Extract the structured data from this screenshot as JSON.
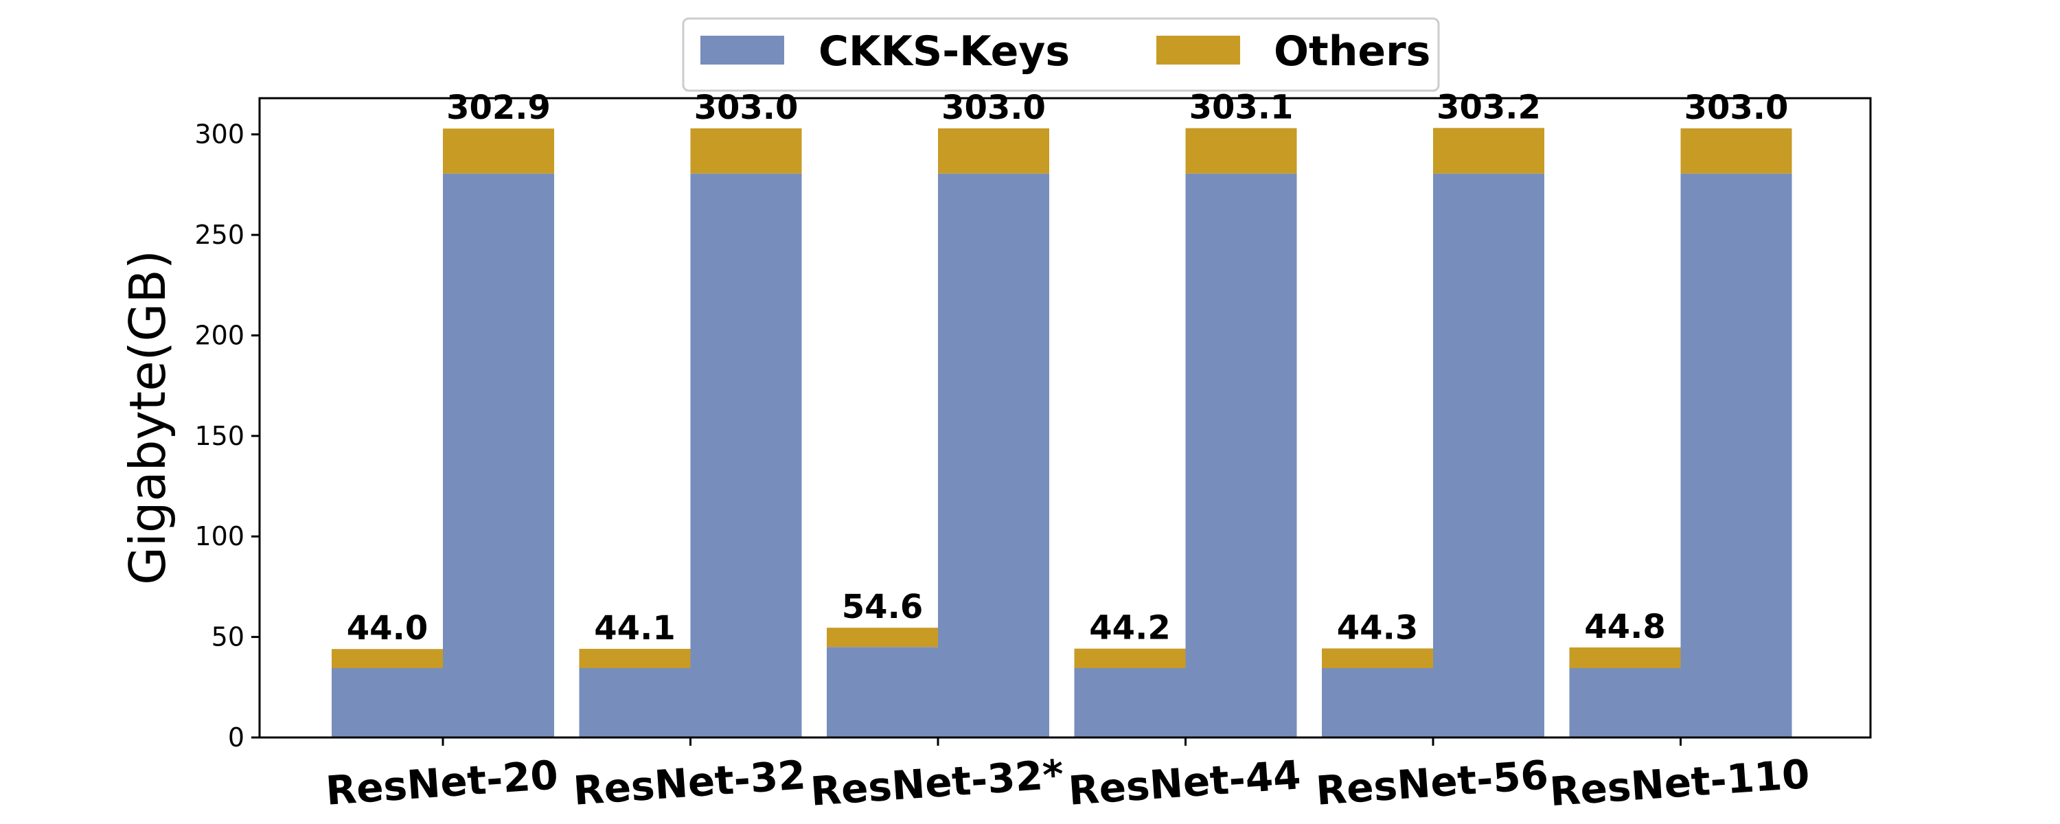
{
  "chart_data": {
    "type": "bar",
    "stacked": true,
    "title": "",
    "xlabel": "",
    "ylabel": "Gigabyte(GB)",
    "ylim": [
      0,
      318
    ],
    "yticks": [
      0,
      50,
      100,
      150,
      200,
      250,
      300
    ],
    "categories": [
      "ResNet-20",
      "ResNet-32",
      "ResNet-32*",
      "ResNet-44",
      "ResNet-56",
      "ResNet-110"
    ],
    "bars_per_category": 2,
    "series": [
      {
        "name": "CKKS-Keys",
        "color": "#778dbc",
        "values": [
          [
            34.5,
            280.5
          ],
          [
            34.5,
            280.5
          ],
          [
            45.0,
            280.5
          ],
          [
            34.5,
            280.5
          ],
          [
            34.5,
            280.5
          ],
          [
            34.5,
            280.5
          ]
        ]
      },
      {
        "name": "Others",
        "color": "#c89b25",
        "values": [
          [
            9.5,
            22.4
          ],
          [
            9.6,
            22.5
          ],
          [
            9.6,
            22.5
          ],
          [
            9.7,
            22.6
          ],
          [
            9.8,
            22.7
          ],
          [
            10.3,
            22.5
          ]
        ]
      }
    ],
    "totals": [
      [
        "44.0",
        "302.9"
      ],
      [
        "44.1",
        "303.0"
      ],
      [
        "54.6",
        "303.0"
      ],
      [
        "44.2",
        "303.1"
      ],
      [
        "44.3",
        "303.2"
      ],
      [
        "44.8",
        "303.0"
      ]
    ],
    "grid": false,
    "legend_position": "top-center"
  }
}
